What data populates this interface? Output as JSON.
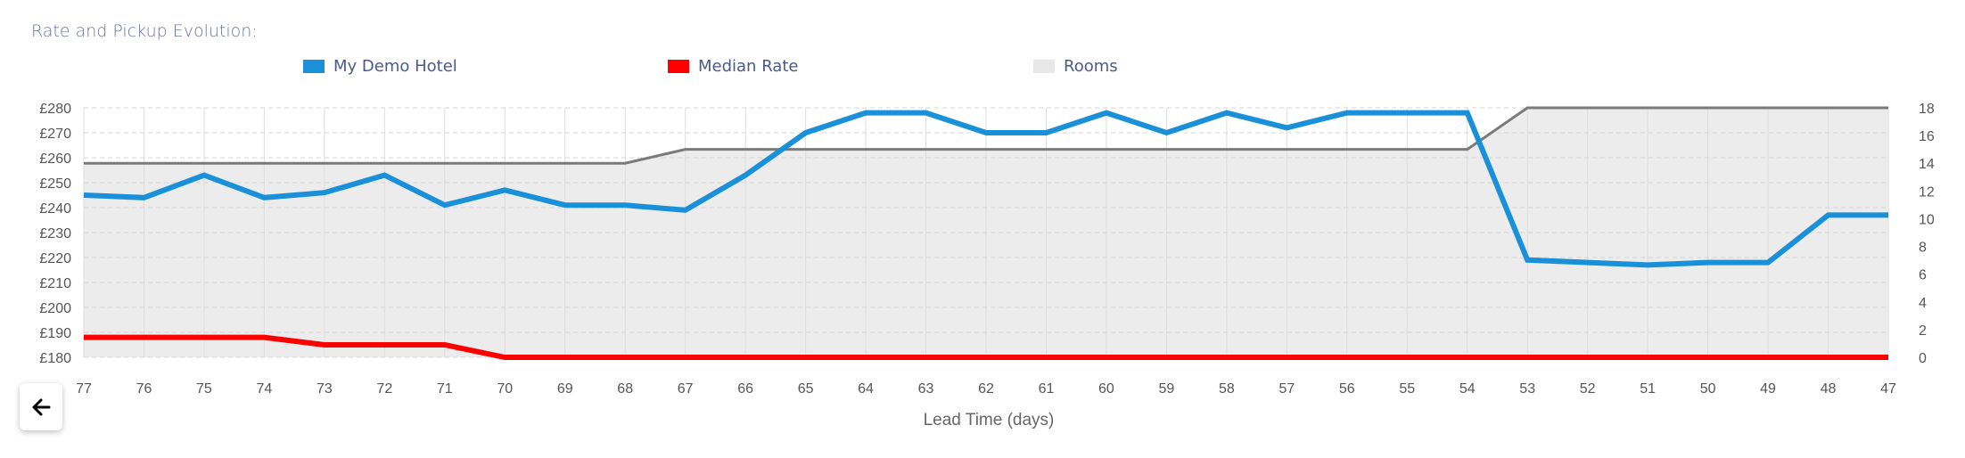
{
  "title": "Rate and Pickup Evolution:",
  "legend": [
    {
      "label": "My Demo Hotel",
      "color": "#1a90d8"
    },
    {
      "label": "Median Rate",
      "color": "#ff0000"
    },
    {
      "label": "Rooms",
      "color": "#e8e8e8"
    }
  ],
  "back_button": {
    "icon": "arrow-left-icon"
  },
  "chart_data": {
    "type": "line",
    "xlabel": "Lead Time (days)",
    "categories": [
      "77",
      "76",
      "75",
      "74",
      "73",
      "72",
      "71",
      "70",
      "69",
      "68",
      "67",
      "66",
      "65",
      "64",
      "63",
      "62",
      "61",
      "60",
      "59",
      "58",
      "57",
      "56",
      "55",
      "54",
      "53",
      "52",
      "51",
      "50",
      "49",
      "48",
      "47"
    ],
    "y_left": {
      "min": 180,
      "max": 280,
      "ticks": [
        180,
        190,
        200,
        210,
        220,
        230,
        240,
        250,
        260,
        270,
        280
      ],
      "prefix": "£"
    },
    "y_right": {
      "min": 0,
      "max": 18,
      "ticks": [
        0,
        2,
        4,
        6,
        8,
        10,
        12,
        14,
        16,
        18
      ]
    },
    "grid": true,
    "series": [
      {
        "name": "My Demo Hotel",
        "axis": "left",
        "color": "#1a90d8",
        "values": [
          245,
          244,
          253,
          244,
          246,
          253,
          241,
          247,
          241,
          241,
          239,
          253,
          270,
          278,
          278,
          270,
          270,
          278,
          270,
          278,
          272,
          278,
          278,
          278,
          219,
          218,
          217,
          218,
          218,
          237,
          237
        ]
      },
      {
        "name": "Median Rate",
        "axis": "left",
        "color": "#ff0000",
        "values": [
          188,
          188,
          188,
          188,
          185,
          185,
          185,
          180,
          180,
          180,
          180,
          180,
          180,
          180,
          180,
          180,
          180,
          180,
          180,
          180,
          180,
          180,
          180,
          180,
          180,
          180,
          180,
          180,
          180,
          180,
          180
        ]
      },
      {
        "name": "Rooms",
        "axis": "right",
        "type": "area",
        "fill": "#ececec",
        "line_color": "#7a7a7a",
        "values": [
          14,
          14,
          14,
          14,
          14,
          14,
          14,
          14,
          14,
          14,
          15,
          15,
          15,
          15,
          15,
          15,
          15,
          15,
          15,
          15,
          15,
          15,
          15,
          15,
          18,
          18,
          18,
          18,
          18,
          18,
          18
        ]
      }
    ]
  }
}
